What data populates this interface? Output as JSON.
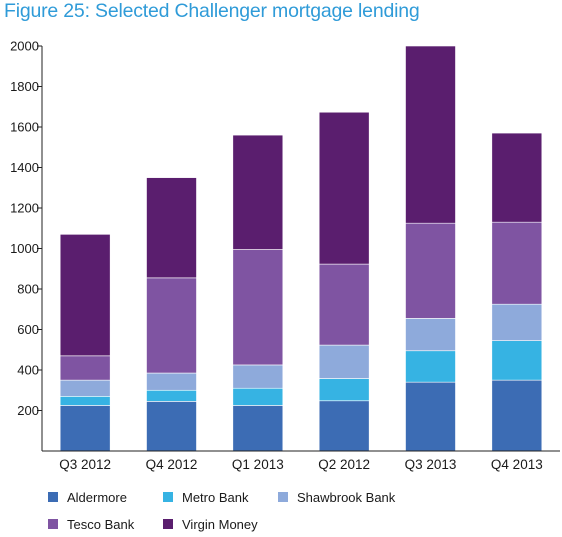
{
  "title": "Figure 25: Selected Challenger mortgage lending",
  "chart_data": {
    "type": "bar",
    "stacked": true,
    "categories": [
      "Q3 2012",
      "Q4 2012",
      "Q1 2013",
      "Q2 2012",
      "Q3 2013",
      "Q4 2013"
    ],
    "ylim": [
      0,
      2000
    ],
    "yticks": [
      200,
      400,
      600,
      800,
      1000,
      1200,
      1400,
      1600,
      1800,
      2000
    ],
    "grid": false,
    "legend_position": "bottom",
    "series": [
      {
        "name": "Aldermore",
        "color": "#3c6cb4",
        "values": [
          225,
          245,
          225,
          248,
          340,
          350
        ]
      },
      {
        "name": "Metro Bank",
        "color": "#36b3e3",
        "values": [
          45,
          55,
          85,
          110,
          155,
          195
        ]
      },
      {
        "name": "Shawbrook Bank",
        "color": "#8eaadb",
        "values": [
          80,
          85,
          115,
          165,
          160,
          180
        ]
      },
      {
        "name": "Tesco Bank",
        "color": "#7f54a2",
        "values": [
          120,
          470,
          570,
          400,
          470,
          405
        ]
      },
      {
        "name": "Virgin Money",
        "color": "#5a1e6e",
        "values": [
          600,
          495,
          565,
          750,
          875,
          440
        ]
      }
    ]
  }
}
